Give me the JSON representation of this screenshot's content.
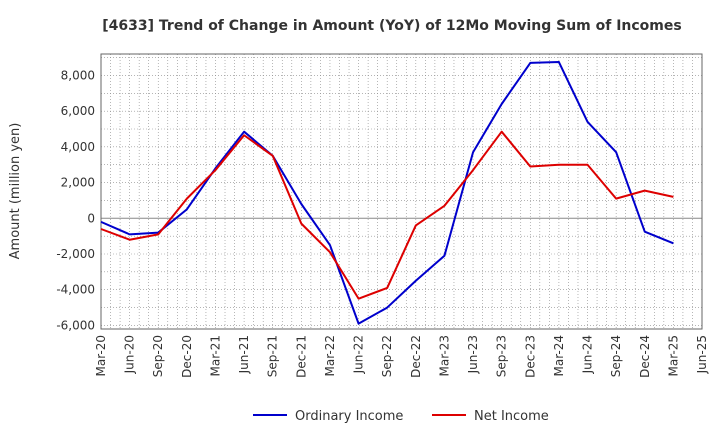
{
  "chart_data": {
    "type": "line",
    "title": "[4633]  Trend of Change in Amount (YoY) of 12Mo Moving Sum of Incomes",
    "xlabel": "",
    "ylabel": "Amount (million yen)",
    "ylim": [
      -6200,
      9200
    ],
    "yticks": [
      -6000,
      -4000,
      -2000,
      0,
      2000,
      4000,
      6000,
      8000
    ],
    "ytick_labels": [
      "-6,000",
      "-4,000",
      "-2,000",
      "0",
      "2,000",
      "4,000",
      "6,000",
      "8,000"
    ],
    "categories": [
      "Mar-20",
      "Jun-20",
      "Sep-20",
      "Dec-20",
      "Mar-21",
      "Jun-21",
      "Sep-21",
      "Dec-21",
      "Mar-22",
      "Jun-22",
      "Sep-22",
      "Dec-22",
      "Mar-23",
      "Jun-23",
      "Sep-23",
      "Dec-23",
      "Mar-24",
      "Jun-24",
      "Sep-24",
      "Dec-24",
      "Mar-25",
      "Jun-25"
    ],
    "grid": true,
    "legend_position": "bottom",
    "series": [
      {
        "name": "Ordinary Income",
        "color": "#0000cc",
        "values": [
          -200,
          -900,
          -800,
          500,
          2800,
          4850,
          3500,
          800,
          -1500,
          -5900,
          -5000,
          -3500,
          -2100,
          3700,
          6400,
          8700,
          8750,
          5400,
          3700,
          -750,
          -1400,
          null
        ]
      },
      {
        "name": "Net Income",
        "color": "#dd0000",
        "values": [
          -600,
          -1200,
          -900,
          1100,
          2700,
          4650,
          3500,
          -300,
          -1900,
          -4500,
          -3900,
          -400,
          700,
          2700,
          4850,
          2900,
          3000,
          3000,
          1100,
          1550,
          1200,
          null
        ]
      }
    ]
  }
}
